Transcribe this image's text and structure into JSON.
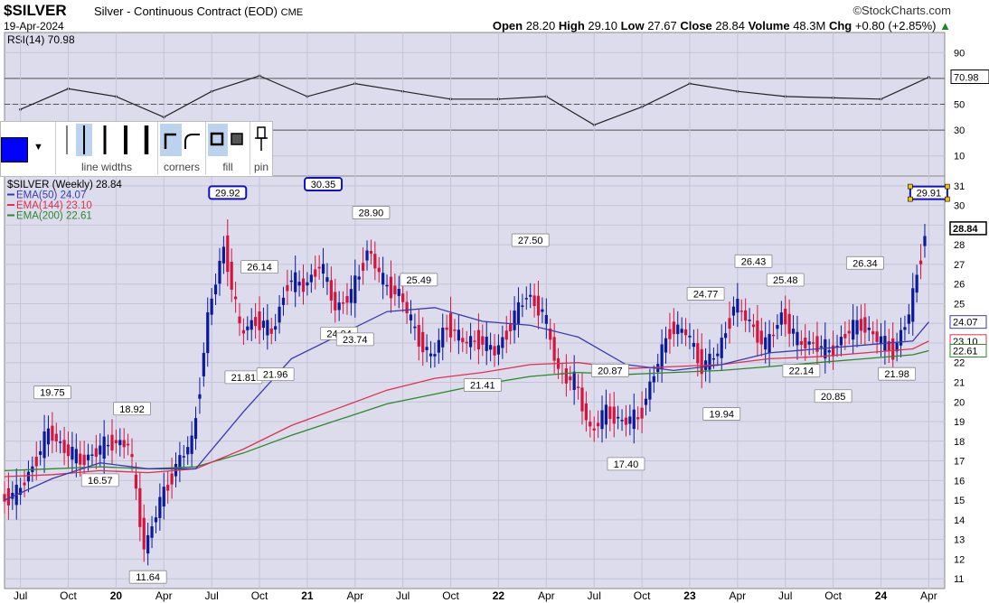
{
  "header": {
    "symbol": "$SILVER",
    "description": "Silver - Continuous Contract (EOD)",
    "exchange": "CME",
    "date": "19-Apr-2024",
    "brand": "©StockCharts.com",
    "open_label": "Open",
    "open": "28.20",
    "high_label": "High",
    "high": "29.10",
    "low_label": "Low",
    "low": "27.67",
    "close_label": "Close",
    "close": "28.84",
    "volume_label": "Volume",
    "volume": "48.3M",
    "chg_label": "Chg",
    "chg": "+0.80 (+2.85%)"
  },
  "toolbar": {
    "line_widths": "line widths",
    "corners": "corners",
    "fill": "fill",
    "pin": "pin",
    "color": "#0000ff"
  },
  "colors": {
    "price_up": "#0a1a9a",
    "price_down": "#d4143c",
    "ema50": "#3a3ab0",
    "ema144": "#e03050",
    "ema200": "#2a8a2a",
    "rsi": "#222222",
    "bg": "#dcdcec"
  },
  "chart_data": [
    {
      "type": "line",
      "panel": "RSI",
      "legend": "RSI(14) 70.98",
      "last_value": "70.98",
      "y_ticks": [
        10,
        30,
        50,
        70,
        90
      ],
      "reference_lines": [
        30,
        50,
        70
      ],
      "x": [
        "Jul 2019",
        "Oct 2019",
        "Jan 2020",
        "Apr 2020",
        "Jul 2020",
        "Oct 2020",
        "Jan 2021",
        "Apr 2021",
        "Jul 2021",
        "Oct 2021",
        "Jan 2022",
        "Apr 2022",
        "Jul 2022",
        "Oct 2022",
        "Jan 2023",
        "Apr 2023",
        "Jul 2023",
        "Oct 2023",
        "Jan 2024",
        "Apr 2024"
      ],
      "values": [
        46,
        62,
        56,
        40,
        60,
        72,
        56,
        66,
        60,
        54,
        54,
        56,
        34,
        48,
        66,
        60,
        56,
        55,
        54,
        71
      ]
    },
    {
      "type": "candlestick",
      "panel": "Price",
      "legend": [
        "$SILVER (Weekly) 28.84",
        "EMA(50) 24.07",
        "EMA(144) 23.10",
        "EMA(200) 22.61"
      ],
      "y_ticks": [
        11,
        12,
        13,
        14,
        15,
        16,
        17,
        18,
        19,
        20,
        21,
        22,
        23,
        24,
        25,
        26,
        27,
        28,
        29,
        30,
        31
      ],
      "y_right_tags": [
        "24.07",
        "23.10",
        "22.61",
        "28.84"
      ],
      "x_labels": [
        "Jul",
        "Oct",
        "20",
        "Apr",
        "Jul",
        "Oct",
        "21",
        "Apr",
        "Jul",
        "Oct",
        "22",
        "Apr",
        "Jul",
        "Oct",
        "23",
        "Apr",
        "Jul",
        "Oct",
        "24",
        "Apr"
      ],
      "annotations": [
        {
          "x": "2019-09",
          "value": 19.75,
          "label": "19.75"
        },
        {
          "x": "2019-12",
          "value": 16.57,
          "label": "16.57"
        },
        {
          "x": "2020-02",
          "value": 18.92,
          "label": "18.92"
        },
        {
          "x": "2020-03",
          "value": 11.64,
          "label": "11.64"
        },
        {
          "x": "2020-08",
          "value": 29.92,
          "label": "29.92"
        },
        {
          "x": "2020-09",
          "value": 21.81,
          "label": "21.81"
        },
        {
          "x": "2020-10",
          "value": 26.14,
          "label": "26.14"
        },
        {
          "x": "2020-11",
          "value": 21.96,
          "label": "21.96"
        },
        {
          "x": "2021-02",
          "value": 30.35,
          "label": "30.35"
        },
        {
          "x": "2021-03",
          "value": 24.04,
          "label": "24.04"
        },
        {
          "x": "2021-04",
          "value": 23.74,
          "label": "23.74"
        },
        {
          "x": "2021-05",
          "value": 28.9,
          "label": "28.90"
        },
        {
          "x": "2021-08",
          "value": 25.49,
          "label": "25.49"
        },
        {
          "x": "2021-12",
          "value": 21.41,
          "label": "21.41"
        },
        {
          "x": "2022-03",
          "value": 27.5,
          "label": "27.50"
        },
        {
          "x": "2022-08",
          "value": 20.87,
          "label": "20.87"
        },
        {
          "x": "2022-09",
          "value": 17.4,
          "label": "17.40"
        },
        {
          "x": "2023-02",
          "value": 24.77,
          "label": "24.77"
        },
        {
          "x": "2023-03",
          "value": 19.94,
          "label": "19.94"
        },
        {
          "x": "2023-05",
          "value": 26.43,
          "label": "26.43"
        },
        {
          "x": "2023-07",
          "value": 25.48,
          "label": "25.48"
        },
        {
          "x": "2023-08",
          "value": 22.14,
          "label": "22.14"
        },
        {
          "x": "2023-10",
          "value": 20.85,
          "label": "20.85"
        },
        {
          "x": "2023-12",
          "value": 26.34,
          "label": "26.34"
        },
        {
          "x": "2024-02",
          "value": 21.98,
          "label": "21.98"
        },
        {
          "x": "2024-04",
          "value": 29.91,
          "label": "29.91"
        }
      ],
      "close_path": [
        {
          "x": "2019-06",
          "close": 15.1
        },
        {
          "x": "2019-07",
          "close": 15.3
        },
        {
          "x": "2019-08",
          "close": 16.8
        },
        {
          "x": "2019-09",
          "close": 18.5
        },
        {
          "x": "2019-10",
          "close": 17.6
        },
        {
          "x": "2019-11",
          "close": 17.0
        },
        {
          "x": "2019-12",
          "close": 17.5
        },
        {
          "x": "2020-01",
          "close": 18.0
        },
        {
          "x": "2020-02",
          "close": 17.8
        },
        {
          "x": "2020-03",
          "close": 12.5
        },
        {
          "x": "2020-04",
          "close": 15.0
        },
        {
          "x": "2020-05",
          "close": 16.8
        },
        {
          "x": "2020-06",
          "close": 18.0
        },
        {
          "x": "2020-07",
          "close": 24.5
        },
        {
          "x": "2020-08",
          "close": 28.0
        },
        {
          "x": "2020-09",
          "close": 23.5
        },
        {
          "x": "2020-10",
          "close": 24.2
        },
        {
          "x": "2020-11",
          "close": 23.5
        },
        {
          "x": "2020-12",
          "close": 26.2
        },
        {
          "x": "2021-01",
          "close": 25.9
        },
        {
          "x": "2021-02",
          "close": 27.0
        },
        {
          "x": "2021-03",
          "close": 24.8
        },
        {
          "x": "2021-04",
          "close": 25.5
        },
        {
          "x": "2021-05",
          "close": 27.8
        },
        {
          "x": "2021-06",
          "close": 26.0
        },
        {
          "x": "2021-07",
          "close": 25.5
        },
        {
          "x": "2021-08",
          "close": 23.5
        },
        {
          "x": "2021-09",
          "close": 22.2
        },
        {
          "x": "2021-10",
          "close": 24.0
        },
        {
          "x": "2021-11",
          "close": 23.0
        },
        {
          "x": "2021-12",
          "close": 23.2
        },
        {
          "x": "2022-01",
          "close": 22.5
        },
        {
          "x": "2022-02",
          "close": 24.0
        },
        {
          "x": "2022-03",
          "close": 25.5
        },
        {
          "x": "2022-04",
          "close": 24.5
        },
        {
          "x": "2022-05",
          "close": 21.5
        },
        {
          "x": "2022-06",
          "close": 21.0
        },
        {
          "x": "2022-07",
          "close": 18.5
        },
        {
          "x": "2022-08",
          "close": 19.5
        },
        {
          "x": "2022-09",
          "close": 19.0
        },
        {
          "x": "2022-10",
          "close": 19.2
        },
        {
          "x": "2022-11",
          "close": 21.5
        },
        {
          "x": "2022-12",
          "close": 23.8
        },
        {
          "x": "2023-01",
          "close": 23.5
        },
        {
          "x": "2023-02",
          "close": 21.8
        },
        {
          "x": "2023-03",
          "close": 22.5
        },
        {
          "x": "2023-04",
          "close": 25.0
        },
        {
          "x": "2023-05",
          "close": 24.0
        },
        {
          "x": "2023-06",
          "close": 22.8
        },
        {
          "x": "2023-07",
          "close": 24.5
        },
        {
          "x": "2023-08",
          "close": 23.0
        },
        {
          "x": "2023-09",
          "close": 23.0
        },
        {
          "x": "2023-10",
          "close": 22.5
        },
        {
          "x": "2023-11",
          "close": 23.5
        },
        {
          "x": "2023-12",
          "close": 24.0
        },
        {
          "x": "2024-01",
          "close": 23.2
        },
        {
          "x": "2024-02",
          "close": 22.6
        },
        {
          "x": "2024-03",
          "close": 24.5
        },
        {
          "x": "2024-04",
          "close": 28.84
        }
      ],
      "ema50": [
        {
          "x": "2019-06",
          "v": 15.0
        },
        {
          "x": "2019-09",
          "v": 16.1
        },
        {
          "x": "2019-12",
          "v": 16.9
        },
        {
          "x": "2020-03",
          "v": 16.6
        },
        {
          "x": "2020-06",
          "v": 16.6
        },
        {
          "x": "2020-09",
          "v": 19.5
        },
        {
          "x": "2020-12",
          "v": 22.2
        },
        {
          "x": "2021-03",
          "v": 23.4
        },
        {
          "x": "2021-06",
          "v": 24.6
        },
        {
          "x": "2021-09",
          "v": 24.8
        },
        {
          "x": "2021-12",
          "v": 24.1
        },
        {
          "x": "2022-03",
          "v": 23.9
        },
        {
          "x": "2022-06",
          "v": 23.3
        },
        {
          "x": "2022-09",
          "v": 21.9
        },
        {
          "x": "2022-12",
          "v": 21.6
        },
        {
          "x": "2023-03",
          "v": 21.9
        },
        {
          "x": "2023-06",
          "v": 22.5
        },
        {
          "x": "2023-09",
          "v": 22.7
        },
        {
          "x": "2023-12",
          "v": 22.9
        },
        {
          "x": "2024-03",
          "v": 23.1
        },
        {
          "x": "2024-04",
          "v": 24.07
        }
      ],
      "ema144": [
        {
          "x": "2019-06",
          "v": 16.2
        },
        {
          "x": "2019-09",
          "v": 16.3
        },
        {
          "x": "2019-12",
          "v": 16.5
        },
        {
          "x": "2020-03",
          "v": 16.4
        },
        {
          "x": "2020-06",
          "v": 16.6
        },
        {
          "x": "2020-09",
          "v": 17.6
        },
        {
          "x": "2020-12",
          "v": 18.8
        },
        {
          "x": "2021-03",
          "v": 19.7
        },
        {
          "x": "2021-06",
          "v": 20.6
        },
        {
          "x": "2021-09",
          "v": 21.2
        },
        {
          "x": "2021-12",
          "v": 21.5
        },
        {
          "x": "2022-03",
          "v": 21.9
        },
        {
          "x": "2022-06",
          "v": 22.0
        },
        {
          "x": "2022-09",
          "v": 21.7
        },
        {
          "x": "2022-12",
          "v": 21.8
        },
        {
          "x": "2023-03",
          "v": 21.9
        },
        {
          "x": "2023-06",
          "v": 22.2
        },
        {
          "x": "2023-09",
          "v": 22.3
        },
        {
          "x": "2023-12",
          "v": 22.5
        },
        {
          "x": "2024-03",
          "v": 22.7
        },
        {
          "x": "2024-04",
          "v": 23.1
        }
      ],
      "ema200": [
        {
          "x": "2019-06",
          "v": 16.5
        },
        {
          "x": "2019-09",
          "v": 16.6
        },
        {
          "x": "2019-12",
          "v": 16.7
        },
        {
          "x": "2020-03",
          "v": 16.6
        },
        {
          "x": "2020-06",
          "v": 16.7
        },
        {
          "x": "2020-09",
          "v": 17.4
        },
        {
          "x": "2020-12",
          "v": 18.3
        },
        {
          "x": "2021-03",
          "v": 19.1
        },
        {
          "x": "2021-06",
          "v": 19.9
        },
        {
          "x": "2021-09",
          "v": 20.4
        },
        {
          "x": "2021-12",
          "v": 20.9
        },
        {
          "x": "2022-03",
          "v": 21.3
        },
        {
          "x": "2022-06",
          "v": 21.5
        },
        {
          "x": "2022-09",
          "v": 21.4
        },
        {
          "x": "2022-12",
          "v": 21.5
        },
        {
          "x": "2023-03",
          "v": 21.6
        },
        {
          "x": "2023-06",
          "v": 21.8
        },
        {
          "x": "2023-09",
          "v": 22.0
        },
        {
          "x": "2023-12",
          "v": 22.2
        },
        {
          "x": "2024-03",
          "v": 22.4
        },
        {
          "x": "2024-04",
          "v": 22.61
        }
      ]
    }
  ]
}
